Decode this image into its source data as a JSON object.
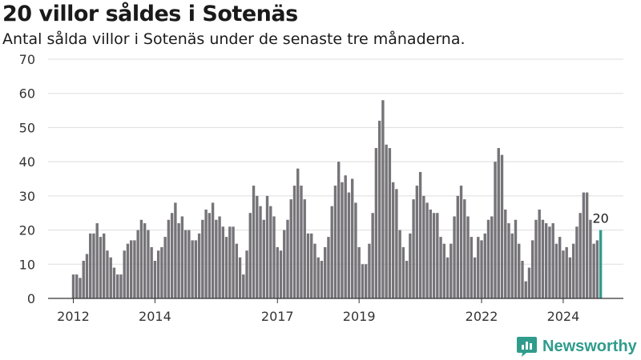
{
  "title": "20 villor såldes i Sotenäs",
  "subtitle": "Antal sålda villor i Sotenäs under de senaste tre månaderna.",
  "brand": {
    "name": "Newsworthy",
    "color": "#2f9c8c",
    "icon": "bar-chart-speech-icon"
  },
  "chart_data": {
    "type": "bar",
    "title": "20 villor såldes i Sotenäs",
    "xlabel": "",
    "ylabel": "",
    "ylim": [
      0,
      70
    ],
    "y_ticks": [
      "0",
      "10",
      "20",
      "30",
      "40",
      "50",
      "60",
      "70"
    ],
    "x_ticks": [
      {
        "label": "2012",
        "index": 0
      },
      {
        "label": "2014",
        "index": 24
      },
      {
        "label": "2017",
        "index": 60
      },
      {
        "label": "2019",
        "index": 84
      },
      {
        "label": "2022",
        "index": 120
      },
      {
        "label": "2024",
        "index": 144
      }
    ],
    "start": "2012-01",
    "frequency": "monthly",
    "bar_color": "#767479",
    "highlight_color": "#2f9c8c",
    "highlight_label": "20",
    "grid": true,
    "values": [
      7,
      7,
      6,
      11,
      13,
      19,
      19,
      22,
      18,
      19,
      14,
      12,
      9,
      7,
      7,
      14,
      16,
      17,
      17,
      20,
      23,
      22,
      20,
      15,
      11,
      14,
      15,
      18,
      23,
      25,
      28,
      22,
      24,
      20,
      20,
      17,
      17,
      19,
      23,
      26,
      25,
      28,
      23,
      24,
      21,
      18,
      21,
      21,
      16,
      12,
      7,
      14,
      25,
      33,
      30,
      27,
      23,
      30,
      27,
      24,
      15,
      14,
      20,
      23,
      29,
      33,
      38,
      33,
      29,
      19,
      19,
      16,
      12,
      11,
      15,
      18,
      27,
      33,
      40,
      34,
      36,
      31,
      35,
      28,
      15,
      10,
      10,
      16,
      25,
      44,
      52,
      58,
      45,
      44,
      34,
      32,
      20,
      15,
      11,
      19,
      29,
      33,
      37,
      30,
      28,
      26,
      25,
      25,
      18,
      16,
      12,
      16,
      24,
      30,
      33,
      29,
      24,
      18,
      12,
      18,
      17,
      19,
      23,
      24,
      40,
      44,
      42,
      26,
      22,
      19,
      23,
      16,
      11,
      5,
      9,
      17,
      23,
      26,
      23,
      22,
      21,
      22,
      16,
      18,
      14,
      15,
      12,
      16,
      21,
      25,
      31,
      31,
      23,
      16,
      17,
      20
    ]
  }
}
